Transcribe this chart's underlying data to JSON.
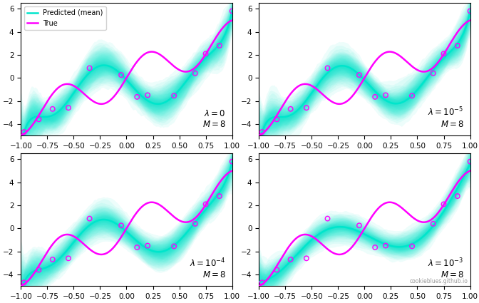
{
  "lambda_values": [
    0,
    1e-05,
    0.0001,
    0.001
  ],
  "M": 8,
  "xlim": [
    -1.0,
    1.0
  ],
  "ylim": [
    -5.0,
    6.5
  ],
  "yticks": [
    -4,
    -2,
    0,
    2,
    4,
    6
  ],
  "true_color": "#ff00ff",
  "pred_color": "#00e5cc",
  "scatter_color": "#ff00ff",
  "band_alpha": 0.07,
  "band_levels": 25,
  "line_width": 1.8,
  "watermark": "cookieblues.github.io",
  "data_x": [
    -0.97,
    -0.83,
    -0.7,
    -0.55,
    -0.35,
    -0.05,
    0.1,
    0.2,
    0.45,
    0.65,
    0.75,
    0.88,
    1.0
  ],
  "data_y": [
    -4.7,
    -3.6,
    -2.7,
    -2.6,
    0.85,
    0.25,
    -1.65,
    -1.5,
    -1.55,
    0.4,
    2.1,
    2.8,
    5.8
  ],
  "n_samples": 300,
  "sigma_noise": 1.2
}
